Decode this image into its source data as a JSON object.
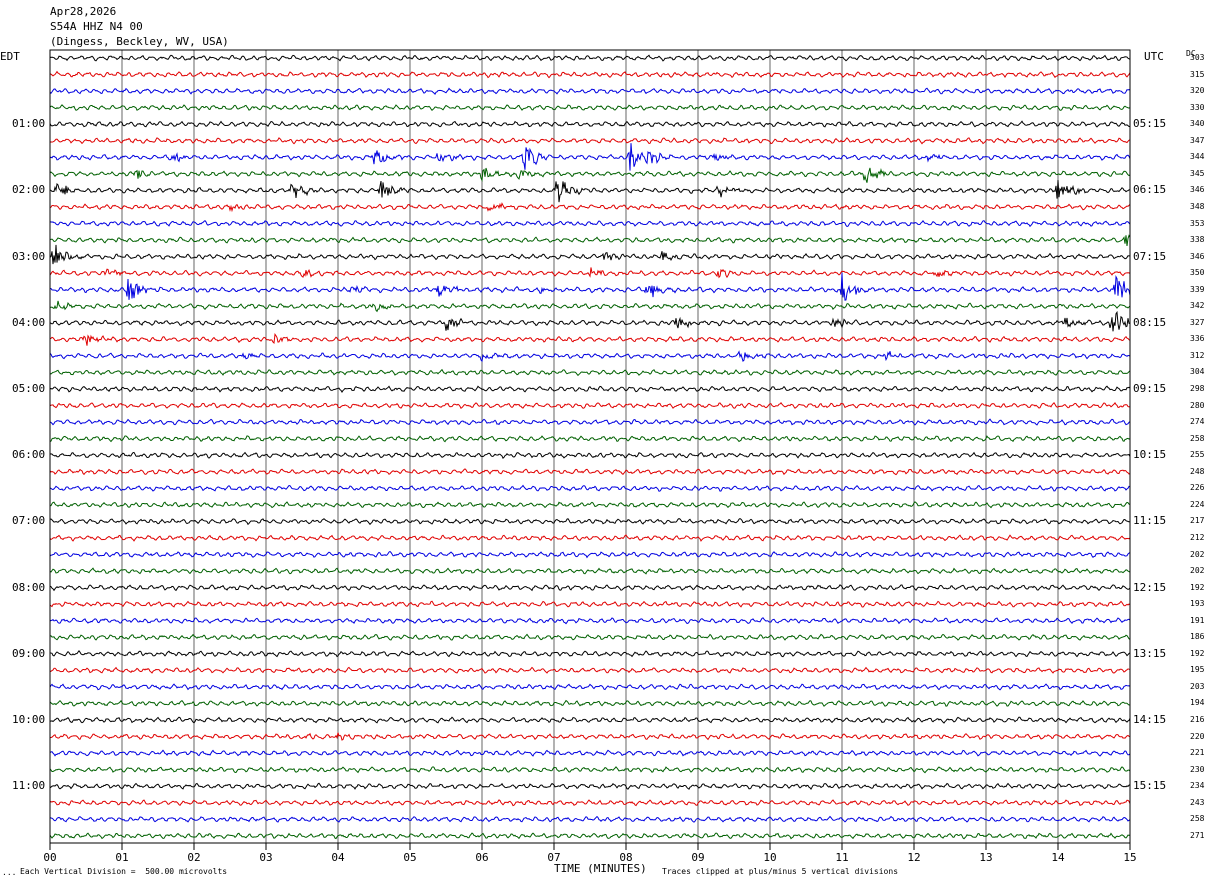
{
  "header": {
    "date": "Apr28,2026",
    "channel": "S54A HHZ N4 00",
    "location": "(Dingess, Beckley, WV, USA)"
  },
  "left_tz_label": "EDT",
  "right_tz_label": "UTC",
  "dc_label": "DC",
  "footer": {
    "vertical_division": "Each Vertical Division =  500.00 microvolts",
    "clip_note": "Traces clipped at plus/minus 5 vertical divisions",
    "corner_mark": "..."
  },
  "chart_data": {
    "type": "line",
    "title": "",
    "xlabel": "TIME (MINUTES)",
    "ylabel": "",
    "x_ticks": [
      "00",
      "01",
      "02",
      "03",
      "04",
      "05",
      "06",
      "07",
      "08",
      "09",
      "10",
      "11",
      "12",
      "13",
      "14",
      "15"
    ],
    "xlim": [
      0,
      15
    ],
    "row_minutes": 15,
    "num_rows": 48,
    "trace_colors": [
      "#000000",
      "#e00000",
      "#0000e0",
      "#006000"
    ],
    "grid": true,
    "left_hour_labels": [
      "01:00",
      "02:00",
      "03:00",
      "04:00",
      "05:00",
      "06:00",
      "07:00",
      "08:00",
      "09:00",
      "10:00",
      "11:00"
    ],
    "right_hour_labels": [
      "05:15",
      "06:15",
      "07:15",
      "08:15",
      "09:15",
      "10:15",
      "11:15",
      "12:15",
      "13:15",
      "14:15",
      "15:15"
    ],
    "dc_offsets": [
      303,
      315,
      320,
      330,
      340,
      347,
      344,
      345,
      346,
      348,
      353,
      338,
      346,
      350,
      339,
      342,
      327,
      336,
      312,
      304,
      298,
      280,
      274,
      258,
      255,
      248,
      226,
      224,
      217,
      212,
      202,
      202,
      192,
      193,
      191,
      186,
      192,
      195,
      203,
      194,
      216,
      220,
      221,
      230,
      234,
      243,
      258,
      271
    ],
    "events": [
      {
        "row": 6,
        "minute": 1.7,
        "amp": 1.5
      },
      {
        "row": 6,
        "minute": 4.5,
        "amp": 2.5
      },
      {
        "row": 6,
        "minute": 5.4,
        "amp": 2
      },
      {
        "row": 6,
        "minute": 6.6,
        "amp": 4.5
      },
      {
        "row": 6,
        "minute": 8.05,
        "amp": 5
      },
      {
        "row": 6,
        "minute": 8.3,
        "amp": 2.5
      },
      {
        "row": 6,
        "minute": 9.2,
        "amp": 1.5
      },
      {
        "row": 6,
        "minute": 12.2,
        "amp": 1.2
      },
      {
        "row": 7,
        "minute": 1.2,
        "amp": 2
      },
      {
        "row": 7,
        "minute": 6.0,
        "amp": 1.8
      },
      {
        "row": 7,
        "minute": 6.5,
        "amp": 2.5
      },
      {
        "row": 7,
        "minute": 11.3,
        "amp": 3.5
      },
      {
        "row": 8,
        "minute": 0.1,
        "amp": 2.5
      },
      {
        "row": 8,
        "minute": 3.35,
        "amp": 3
      },
      {
        "row": 8,
        "minute": 4.6,
        "amp": 3
      },
      {
        "row": 8,
        "minute": 7.05,
        "amp": 5
      },
      {
        "row": 8,
        "minute": 9.3,
        "amp": 2.5
      },
      {
        "row": 8,
        "minute": 14.0,
        "amp": 4
      },
      {
        "row": 9,
        "minute": 2.5,
        "amp": 1.5
      },
      {
        "row": 9,
        "minute": 6.1,
        "amp": 1.6
      },
      {
        "row": 11,
        "minute": 14.95,
        "amp": 3
      },
      {
        "row": 12,
        "minute": 0.05,
        "amp": 4
      },
      {
        "row": 12,
        "minute": 7.7,
        "amp": 2
      },
      {
        "row": 12,
        "minute": 8.5,
        "amp": 1.6
      },
      {
        "row": 13,
        "minute": 0.8,
        "amp": 2
      },
      {
        "row": 13,
        "minute": 3.5,
        "amp": 1.5
      },
      {
        "row": 13,
        "minute": 7.5,
        "amp": 2
      },
      {
        "row": 13,
        "minute": 9.3,
        "amp": 1.5
      },
      {
        "row": 13,
        "minute": 12.3,
        "amp": 1.5
      },
      {
        "row": 14,
        "minute": 1.1,
        "amp": 5
      },
      {
        "row": 14,
        "minute": 4.2,
        "amp": 1.5
      },
      {
        "row": 14,
        "minute": 5.4,
        "amp": 2.5
      },
      {
        "row": 14,
        "minute": 6.8,
        "amp": 1.5
      },
      {
        "row": 14,
        "minute": 8.3,
        "amp": 3.5
      },
      {
        "row": 14,
        "minute": 11.0,
        "amp": 5
      },
      {
        "row": 14,
        "minute": 14.8,
        "amp": 5
      },
      {
        "row": 15,
        "minute": 0.1,
        "amp": 1.5
      },
      {
        "row": 15,
        "minute": 4.5,
        "amp": 1.5
      },
      {
        "row": 16,
        "minute": 5.5,
        "amp": 2.5
      },
      {
        "row": 16,
        "minute": 8.7,
        "amp": 2.5
      },
      {
        "row": 16,
        "minute": 10.9,
        "amp": 2
      },
      {
        "row": 16,
        "minute": 14.1,
        "amp": 2.5
      },
      {
        "row": 16,
        "minute": 14.75,
        "amp": 5
      },
      {
        "row": 17,
        "minute": 0.5,
        "amp": 2
      },
      {
        "row": 17,
        "minute": 3.1,
        "amp": 1.5
      },
      {
        "row": 18,
        "minute": 2.7,
        "amp": 1.3
      },
      {
        "row": 18,
        "minute": 6.0,
        "amp": 1.3
      },
      {
        "row": 18,
        "minute": 9.6,
        "amp": 1.8
      },
      {
        "row": 18,
        "minute": 11.6,
        "amp": 1.2
      },
      {
        "row": 41,
        "minute": 3.5,
        "amp": 1.2
      },
      {
        "row": 41,
        "minute": 4.0,
        "amp": 1.4
      }
    ]
  }
}
